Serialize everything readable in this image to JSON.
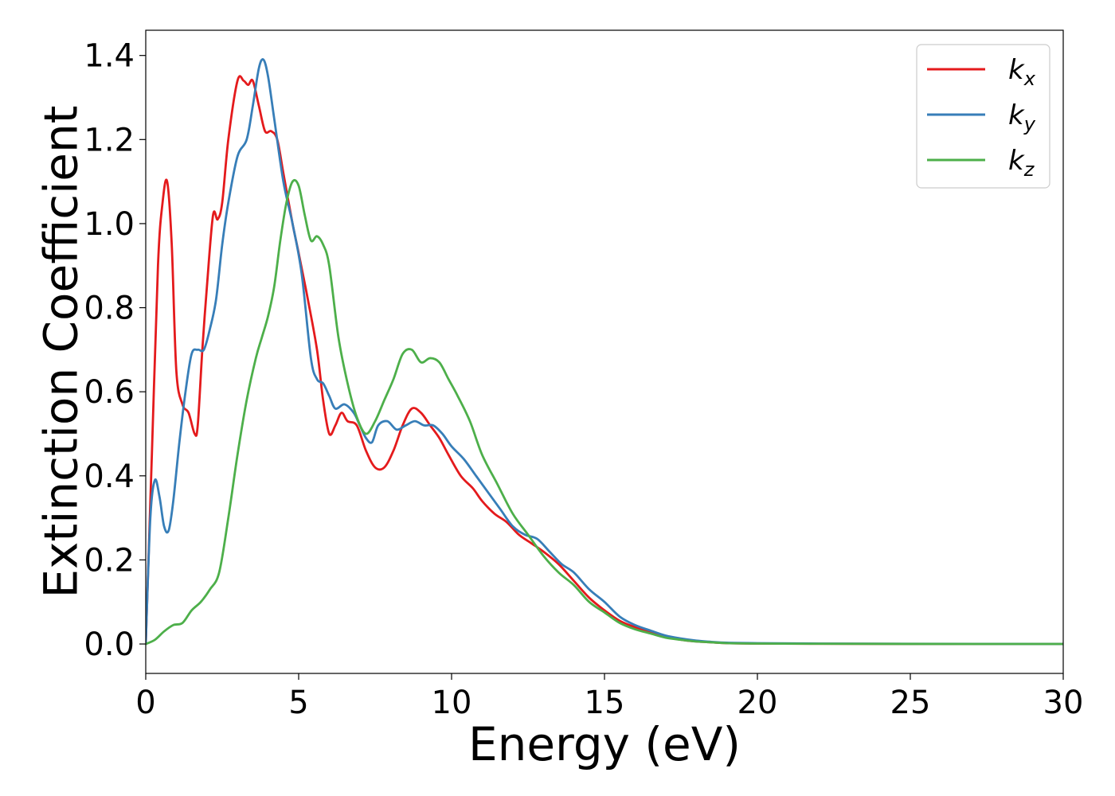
{
  "chart_data": {
    "type": "line",
    "xlabel": "Energy (eV)",
    "ylabel": "Extinction Coefficient",
    "xlim": [
      0,
      30
    ],
    "ylim": [
      -0.07,
      1.46
    ],
    "xticks": [
      0,
      5,
      10,
      15,
      20,
      25,
      30
    ],
    "xtick_labels": [
      "0",
      "5",
      "10",
      "15",
      "20",
      "25",
      "30"
    ],
    "yticks": [
      0.0,
      0.2,
      0.4,
      0.6,
      0.8,
      1.0,
      1.2,
      1.4
    ],
    "ytick_labels": [
      "0.0",
      "0.2",
      "0.4",
      "0.6",
      "0.8",
      "1.0",
      "1.2",
      "1.4"
    ],
    "grid": false,
    "legend_position": "top-right",
    "series": [
      {
        "name": "k_x",
        "label_base": "k",
        "label_sub": "x",
        "color": "#e41a1c",
        "x": [
          0,
          0.2,
          0.4,
          0.55,
          0.7,
          0.85,
          1.0,
          1.2,
          1.4,
          1.6,
          1.7,
          1.85,
          2.0,
          2.2,
          2.35,
          2.5,
          2.7,
          3.0,
          3.2,
          3.35,
          3.5,
          3.7,
          3.9,
          4.1,
          4.3,
          4.5,
          4.8,
          5.0,
          5.3,
          5.6,
          5.8,
          6.0,
          6.2,
          6.4,
          6.6,
          6.9,
          7.2,
          7.5,
          7.8,
          8.1,
          8.4,
          8.7,
          9.0,
          9.3,
          9.6,
          9.9,
          10.3,
          10.7,
          11.0,
          11.4,
          11.8,
          12.2,
          12.6,
          13.0,
          13.5,
          14.0,
          14.5,
          15.0,
          15.5,
          16.0,
          16.5,
          17.0,
          17.5,
          18.0,
          18.5,
          19.0,
          20.0,
          22.0,
          25.0,
          30.0
        ],
        "y": [
          0.0,
          0.45,
          0.9,
          1.05,
          1.1,
          0.95,
          0.65,
          0.57,
          0.55,
          0.5,
          0.52,
          0.7,
          0.85,
          1.02,
          1.01,
          1.05,
          1.2,
          1.34,
          1.34,
          1.33,
          1.34,
          1.28,
          1.22,
          1.22,
          1.2,
          1.12,
          1.0,
          0.93,
          0.82,
          0.7,
          0.58,
          0.5,
          0.52,
          0.55,
          0.53,
          0.52,
          0.46,
          0.42,
          0.42,
          0.46,
          0.52,
          0.56,
          0.55,
          0.52,
          0.49,
          0.45,
          0.4,
          0.37,
          0.34,
          0.31,
          0.29,
          0.26,
          0.24,
          0.22,
          0.19,
          0.15,
          0.11,
          0.08,
          0.055,
          0.04,
          0.028,
          0.018,
          0.01,
          0.006,
          0.004,
          0.002,
          0.001,
          0.0005,
          0.0002,
          0.0
        ]
      },
      {
        "name": "k_y",
        "label_base": "k",
        "label_sub": "y",
        "color": "#377eb8",
        "x": [
          0,
          0.15,
          0.3,
          0.45,
          0.6,
          0.75,
          0.9,
          1.1,
          1.3,
          1.5,
          1.7,
          1.9,
          2.1,
          2.3,
          2.5,
          2.7,
          3.0,
          3.3,
          3.5,
          3.7,
          3.85,
          4.0,
          4.2,
          4.5,
          4.8,
          5.1,
          5.4,
          5.6,
          5.8,
          6.0,
          6.2,
          6.5,
          6.8,
          7.0,
          7.2,
          7.4,
          7.6,
          7.9,
          8.2,
          8.5,
          8.8,
          9.1,
          9.4,
          9.7,
          10.0,
          10.4,
          10.8,
          11.2,
          11.6,
          12.0,
          12.4,
          12.8,
          13.2,
          13.6,
          14.0,
          14.5,
          15.0,
          15.5,
          16.0,
          16.5,
          17.0,
          17.5,
          18.0,
          18.5,
          19.0,
          20.0,
          22.0,
          25.0,
          30.0
        ],
        "y": [
          0.0,
          0.3,
          0.39,
          0.35,
          0.28,
          0.27,
          0.34,
          0.48,
          0.6,
          0.69,
          0.7,
          0.7,
          0.75,
          0.82,
          0.95,
          1.05,
          1.16,
          1.2,
          1.28,
          1.37,
          1.39,
          1.35,
          1.25,
          1.1,
          1.0,
          0.88,
          0.68,
          0.63,
          0.62,
          0.59,
          0.56,
          0.57,
          0.55,
          0.52,
          0.49,
          0.48,
          0.52,
          0.53,
          0.51,
          0.52,
          0.53,
          0.52,
          0.52,
          0.5,
          0.47,
          0.44,
          0.4,
          0.36,
          0.32,
          0.28,
          0.26,
          0.25,
          0.22,
          0.19,
          0.17,
          0.13,
          0.1,
          0.065,
          0.045,
          0.032,
          0.02,
          0.013,
          0.008,
          0.005,
          0.003,
          0.002,
          0.001,
          0.0005,
          0.0
        ]
      },
      {
        "name": "k_z",
        "label_base": "k",
        "label_sub": "z",
        "color": "#4daf4a",
        "x": [
          0,
          0.3,
          0.6,
          0.9,
          1.2,
          1.5,
          1.8,
          2.1,
          2.4,
          2.7,
          3.0,
          3.3,
          3.6,
          3.8,
          4.0,
          4.2,
          4.4,
          4.6,
          4.8,
          5.0,
          5.2,
          5.4,
          5.6,
          5.8,
          6.0,
          6.3,
          6.6,
          6.9,
          7.2,
          7.5,
          7.8,
          8.1,
          8.4,
          8.7,
          9.0,
          9.3,
          9.6,
          9.9,
          10.2,
          10.6,
          11.0,
          11.5,
          12.0,
          12.5,
          13.0,
          13.5,
          14.0,
          14.5,
          15.0,
          15.5,
          16.0,
          16.5,
          17.0,
          17.5,
          18.0,
          18.5,
          19.0,
          20.0,
          22.0,
          25.0,
          30.0
        ],
        "y": [
          0.0,
          0.01,
          0.03,
          0.045,
          0.05,
          0.08,
          0.1,
          0.13,
          0.17,
          0.3,
          0.45,
          0.58,
          0.68,
          0.73,
          0.78,
          0.85,
          0.96,
          1.05,
          1.1,
          1.09,
          1.02,
          0.96,
          0.97,
          0.95,
          0.9,
          0.73,
          0.62,
          0.54,
          0.5,
          0.53,
          0.58,
          0.63,
          0.69,
          0.7,
          0.67,
          0.68,
          0.67,
          0.63,
          0.59,
          0.53,
          0.45,
          0.38,
          0.31,
          0.26,
          0.21,
          0.17,
          0.14,
          0.1,
          0.075,
          0.05,
          0.035,
          0.025,
          0.015,
          0.01,
          0.006,
          0.004,
          0.002,
          0.001,
          0.0005,
          0.0002,
          0.0
        ]
      }
    ]
  }
}
